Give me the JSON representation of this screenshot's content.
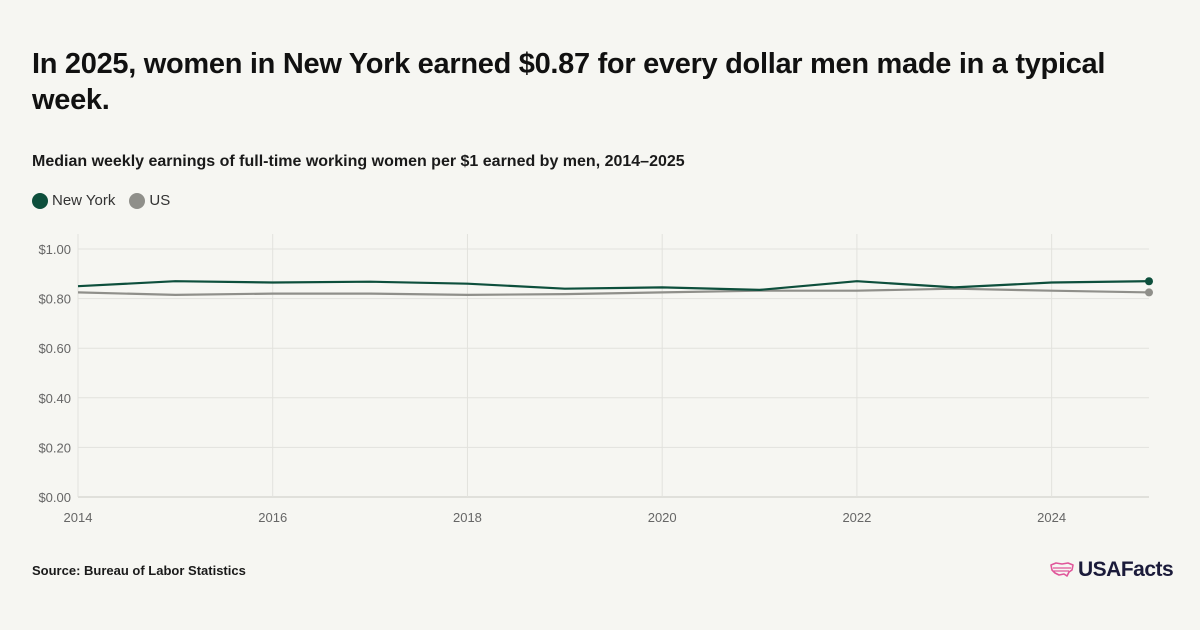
{
  "headline": "In 2025, women in New York earned $0.87 for every dollar men made in a typical week.",
  "subtitle": "Median weekly earnings of full-time working women per $1 earned by men, 2014–2025",
  "source": "Source: Bureau of Labor Statistics",
  "logo": {
    "text": "USAFacts",
    "icon": "us-map-icon"
  },
  "colors": {
    "new_york": "#0d4f3c",
    "us": "#8f8f8a",
    "grid": "#e2e2dd",
    "background": "#f6f6f2"
  },
  "chart_data": {
    "type": "line",
    "x": [
      2014,
      2015,
      2016,
      2017,
      2018,
      2019,
      2020,
      2021,
      2022,
      2023,
      2024,
      2025
    ],
    "series": [
      {
        "name": "New York",
        "values": [
          0.85,
          0.87,
          0.865,
          0.868,
          0.86,
          0.84,
          0.845,
          0.835,
          0.87,
          0.845,
          0.865,
          0.87
        ]
      },
      {
        "name": "US",
        "values": [
          0.825,
          0.815,
          0.82,
          0.82,
          0.815,
          0.818,
          0.825,
          0.832,
          0.832,
          0.84,
          0.832,
          0.825
        ]
      }
    ],
    "x_ticks": [
      2014,
      2016,
      2018,
      2020,
      2022,
      2024
    ],
    "x_tick_labels": [
      "2014",
      "2016",
      "2018",
      "2020",
      "2022",
      "2024"
    ],
    "y_ticks": [
      0,
      0.2,
      0.4,
      0.6,
      0.8,
      1.0
    ],
    "y_tick_labels": [
      "$0.00",
      "$0.20",
      "$0.40",
      "$0.60",
      "$0.80",
      "$1.00"
    ],
    "ylim": [
      0,
      1.0
    ],
    "xlim": [
      2014,
      2025
    ],
    "grid": true,
    "legend_position": "top-left",
    "end_markers": true
  }
}
